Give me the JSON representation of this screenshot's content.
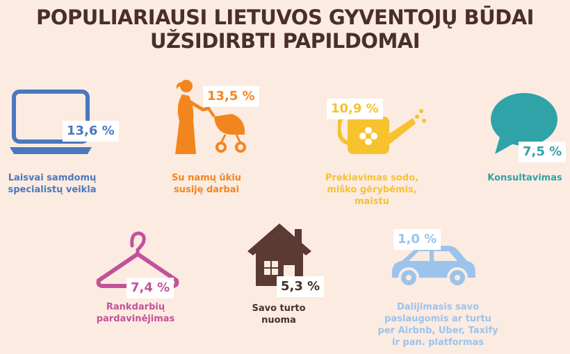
{
  "title": {
    "line1": "POPULIARIAUSI LIETUVOS GYVENTOJŲ BŪDAI",
    "line2": "UŽSIDIRBTI PAPILDOMAI"
  },
  "items": [
    {
      "percent": "13,6 %",
      "label_lines": [
        "Laisvai samdomų",
        "specialistų veikla"
      ],
      "icon": "laptop-icon",
      "color": "#4a78be"
    },
    {
      "percent": "13,5 %",
      "label_lines": [
        "Su namų ūkiu",
        "susiję darbai"
      ],
      "icon": "mother-with-stroller-icon",
      "color": "#f2861e"
    },
    {
      "percent": "10,9 %",
      "label_lines": [
        "Prekiavimas sodo,",
        "miško gėrybėmis,",
        "maistu"
      ],
      "icon": "watering-can-icon",
      "color": "#f6c22e"
    },
    {
      "percent": "7,5 %",
      "label_lines": [
        "Konsultavimas"
      ],
      "icon": "speech-bubble-icon",
      "color": "#2fa3a8"
    },
    {
      "percent": "7,4 %",
      "label_lines": [
        "Rankdarbių",
        "pardavinėjimas"
      ],
      "icon": "clothes-hanger-icon",
      "color": "#c2529a"
    },
    {
      "percent": "5,3 %",
      "label_lines": [
        "Savo turto",
        "nuoma"
      ],
      "icon": "house-icon",
      "color": "#5a3a32"
    },
    {
      "percent": "1,0 %",
      "label_lines": [
        "Dalijimasis savo",
        "paslaugomis ar turtu",
        "per Airbnb, Uber, Taxify",
        "ir pan. platformas"
      ],
      "icon": "car-icon",
      "color": "#9cc3ec"
    }
  ]
}
